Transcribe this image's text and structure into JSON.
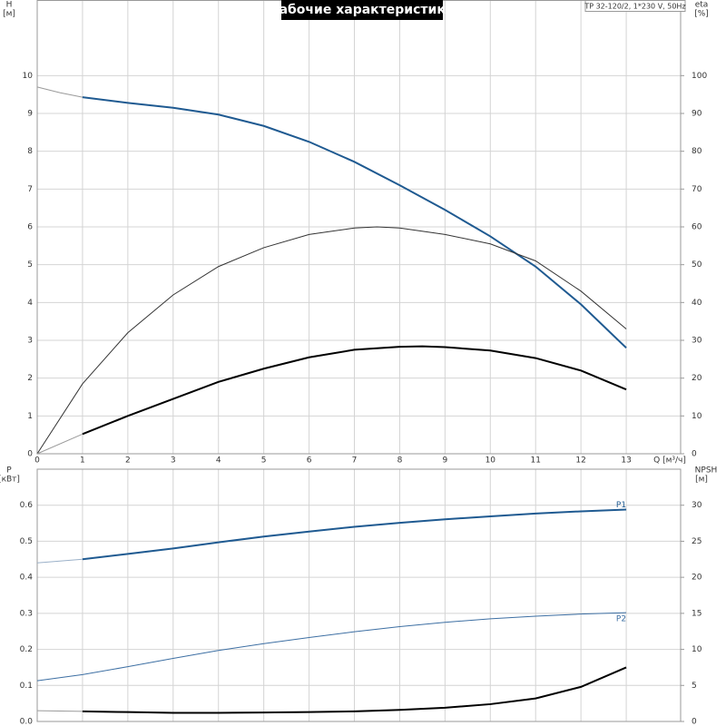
{
  "chart_data": [
    {
      "type": "line",
      "title": "Рабочие характеристики",
      "note": "TP 32-120/2, 1*230 V, 50Hz",
      "ylabel": [
        "H",
        "[м]"
      ],
      "y2label": [
        "eta",
        "[%]"
      ],
      "xlabel": "Q [м³/ч]",
      "xlim": [
        0,
        14.2
      ],
      "xticks": [
        0,
        1,
        2,
        3,
        4,
        5,
        6,
        7,
        8,
        9,
        10,
        11,
        12,
        13
      ],
      "ylim": [
        0,
        12
      ],
      "yticks": [
        0,
        1,
        2,
        3,
        4,
        5,
        6,
        7,
        8,
        9,
        10
      ],
      "y2lim": [
        0,
        120
      ],
      "y2ticks": [
        0,
        10,
        20,
        30,
        40,
        50,
        60,
        70,
        80,
        90,
        100
      ],
      "grid": true,
      "series": [
        {
          "color": "#9a9a9a",
          "line_width": 1,
          "x": [
            0,
            0.5,
            1
          ],
          "values": [
            9.7,
            9.55,
            9.43
          ]
        },
        {
          "color": "#1f5a91",
          "line_width": 2,
          "x": [
            1,
            2,
            3,
            4,
            5,
            6,
            7,
            8,
            9,
            10,
            11,
            12,
            13
          ],
          "values": [
            9.43,
            9.28,
            9.15,
            8.97,
            8.67,
            8.25,
            7.72,
            7.1,
            6.45,
            5.75,
            4.95,
            3.95,
            2.8
          ]
        },
        {
          "color": "#333333",
          "line_width": 1,
          "axis": "y2",
          "x": [
            0,
            1,
            2,
            3,
            4,
            5,
            6,
            7,
            7.5,
            8,
            9,
            10,
            11,
            12,
            13
          ],
          "values": [
            0,
            18.5,
            32,
            42,
            49.5,
            54.5,
            58,
            59.7,
            60,
            59.7,
            58,
            55.5,
            51,
            43,
            33
          ]
        },
        {
          "color": "#9a9a9a",
          "line_width": 1,
          "axis": "y2",
          "x": [
            0,
            1
          ],
          "values": [
            0,
            5.2
          ]
        },
        {
          "color": "#000000",
          "line_width": 2,
          "axis": "y2",
          "x": [
            1,
            2,
            3,
            4,
            5,
            6,
            7,
            8,
            8.5,
            9,
            10,
            11,
            12,
            13
          ],
          "values": [
            5.2,
            10,
            14.5,
            19,
            22.5,
            25.5,
            27.5,
            28.3,
            28.4,
            28.2,
            27.3,
            25.3,
            22,
            17
          ]
        }
      ]
    },
    {
      "type": "line",
      "ylabel": [
        "P",
        "[кВт]"
      ],
      "y2label": [
        "NPSH",
        "[м]"
      ],
      "xlim": [
        0,
        14.2
      ],
      "ylim": [
        0,
        0.7
      ],
      "yticks": [
        {
          "value": 0,
          "label": "0.0"
        },
        0.1,
        0.2,
        0.3,
        0.4,
        0.5,
        0.6
      ],
      "y2lim": [
        0,
        35
      ],
      "y2ticks": [
        0,
        5,
        10,
        15,
        20,
        25,
        30
      ],
      "grid": true,
      "series": [
        {
          "color": "#9ab0c8",
          "line_width": 1,
          "x": [
            0,
            1
          ],
          "values": [
            0.44,
            0.45
          ]
        },
        {
          "name": "P1",
          "color": "#1f5a91",
          "line_width": 2,
          "x": [
            1,
            2,
            3,
            4,
            5,
            6,
            7,
            8,
            9,
            10,
            11,
            12,
            13
          ],
          "values": [
            0.45,
            0.465,
            0.48,
            0.497,
            0.513,
            0.527,
            0.54,
            0.551,
            0.561,
            0.569,
            0.577,
            0.583,
            0.588
          ]
        },
        {
          "name": "P2",
          "color": "#3d6fa3",
          "line_width": 1,
          "x": [
            0,
            1,
            2,
            3,
            4,
            5,
            6,
            7,
            8,
            9,
            10,
            11,
            12,
            13
          ],
          "values": [
            0.113,
            0.13,
            0.152,
            0.175,
            0.197,
            0.216,
            0.233,
            0.249,
            0.263,
            0.275,
            0.285,
            0.292,
            0.298,
            0.302
          ]
        },
        {
          "color": "#9a9a9a",
          "line_width": 1,
          "axis": "y2",
          "x": [
            0,
            1
          ],
          "values": [
            1.5,
            1.4
          ]
        },
        {
          "color": "#000000",
          "line_width": 2,
          "axis": "y2",
          "x": [
            1,
            2,
            3,
            4,
            5,
            6,
            7,
            8,
            9,
            10,
            11,
            12,
            13
          ],
          "values": [
            1.4,
            1.3,
            1.2,
            1.2,
            1.25,
            1.3,
            1.4,
            1.6,
            1.9,
            2.4,
            3.2,
            4.8,
            7.5
          ]
        }
      ]
    }
  ]
}
